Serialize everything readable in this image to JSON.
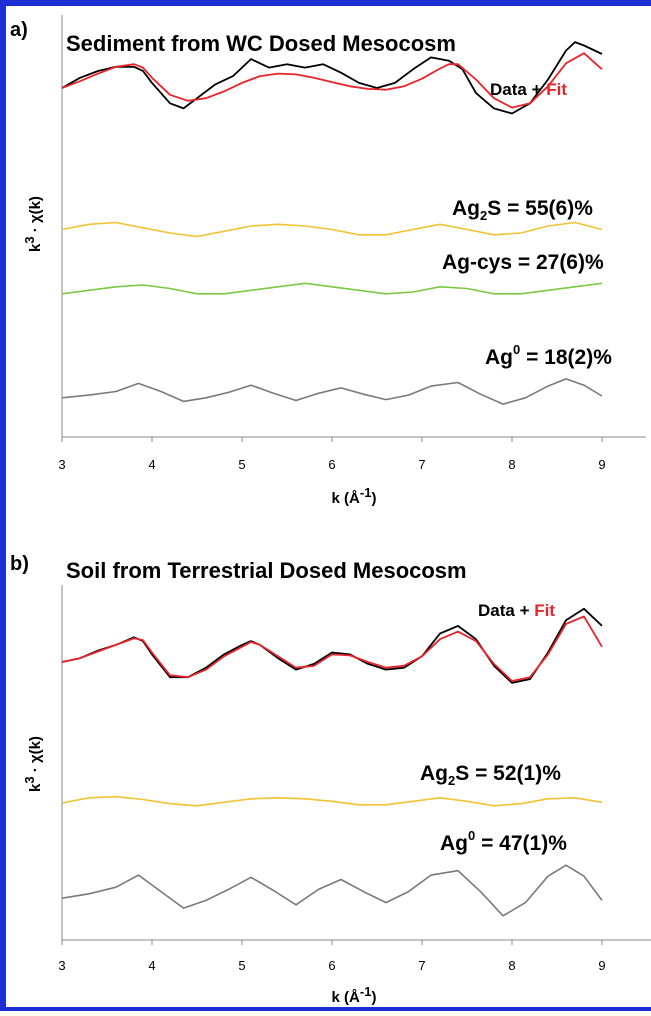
{
  "chart_data": [
    {
      "type": "line",
      "panel_label": "a)",
      "title": "Sediment from WC Dosed Mesocosm",
      "xlabel": "k (Å-1)",
      "ylabel": "k3 · χ(k)",
      "xlim": [
        3,
        9
      ],
      "x_ticks": [
        3,
        4,
        5,
        6,
        7,
        8,
        9
      ],
      "grid": false,
      "legend": {
        "parts": [
          "Data",
          " + ",
          "Fit"
        ],
        "colors": [
          "#000000",
          "#000000",
          "#e8232a"
        ],
        "placement": "top-right"
      },
      "series": [
        {
          "name": "Data",
          "color": "#000000",
          "x": [
            3.0,
            3.2,
            3.4,
            3.6,
            3.8,
            3.9,
            4.0,
            4.2,
            4.35,
            4.5,
            4.7,
            4.9,
            5.1,
            5.3,
            5.5,
            5.7,
            5.9,
            6.1,
            6.3,
            6.5,
            6.7,
            6.9,
            7.1,
            7.3,
            7.45,
            7.6,
            7.8,
            8.0,
            8.2,
            8.4,
            8.6,
            8.7,
            8.8,
            9.0
          ],
          "y": [
            3.2,
            3.8,
            4.2,
            4.45,
            4.45,
            4.2,
            3.5,
            2.3,
            2.0,
            2.6,
            3.4,
            3.9,
            4.9,
            4.4,
            4.6,
            4.4,
            4.6,
            4.1,
            3.5,
            3.2,
            3.5,
            4.3,
            5.0,
            4.8,
            4.3,
            2.9,
            2.0,
            1.7,
            2.3,
            3.7,
            5.4,
            5.9,
            5.7,
            5.2
          ]
        },
        {
          "name": "Fit",
          "color": "#e8232a",
          "x": [
            3.0,
            3.2,
            3.4,
            3.6,
            3.8,
            3.9,
            4.0,
            4.2,
            4.4,
            4.6,
            4.8,
            5.0,
            5.2,
            5.4,
            5.6,
            5.8,
            6.0,
            6.2,
            6.4,
            6.6,
            6.8,
            7.0,
            7.2,
            7.3,
            7.4,
            7.6,
            7.8,
            8.0,
            8.2,
            8.4,
            8.6,
            8.8,
            9.0
          ],
          "y": [
            3.2,
            3.6,
            4.05,
            4.45,
            4.6,
            4.4,
            3.8,
            2.8,
            2.45,
            2.6,
            3.0,
            3.5,
            3.9,
            4.05,
            4.0,
            3.8,
            3.55,
            3.3,
            3.15,
            3.1,
            3.3,
            3.75,
            4.35,
            4.6,
            4.6,
            3.7,
            2.6,
            2.05,
            2.3,
            3.3,
            4.65,
            5.25,
            4.3
          ]
        },
        {
          "name": "Ag2S",
          "color": "#f1c232",
          "x": [
            3.0,
            3.3,
            3.6,
            3.9,
            4.2,
            4.5,
            4.8,
            5.1,
            5.4,
            5.7,
            6.0,
            6.3,
            6.6,
            6.9,
            7.2,
            7.5,
            7.8,
            8.1,
            8.4,
            8.7,
            9.0
          ],
          "y": [
            0.1,
            0.25,
            0.3,
            0.15,
            0.0,
            -0.1,
            0.05,
            0.2,
            0.25,
            0.2,
            0.1,
            -0.05,
            -0.05,
            0.1,
            0.25,
            0.1,
            -0.05,
            0.0,
            0.2,
            0.3,
            0.1
          ]
        },
        {
          "name": "Ag-cys",
          "color": "#7ac943",
          "x": [
            3.0,
            3.3,
            3.6,
            3.9,
            4.2,
            4.5,
            4.8,
            5.1,
            5.4,
            5.7,
            6.0,
            6.3,
            6.6,
            6.9,
            7.2,
            7.5,
            7.8,
            8.1,
            8.4,
            8.7,
            9.0
          ],
          "y": [
            -0.05,
            0.05,
            0.15,
            0.2,
            0.1,
            -0.05,
            -0.05,
            0.05,
            0.15,
            0.25,
            0.15,
            0.05,
            -0.05,
            0.0,
            0.15,
            0.1,
            -0.05,
            -0.05,
            0.05,
            0.15,
            0.25
          ]
        },
        {
          "name": "Ag0",
          "color": "#7a7a7a",
          "x": [
            3.0,
            3.3,
            3.6,
            3.85,
            4.1,
            4.35,
            4.6,
            4.85,
            5.1,
            5.35,
            5.6,
            5.85,
            6.1,
            6.35,
            6.6,
            6.85,
            7.1,
            7.4,
            7.65,
            7.9,
            8.15,
            8.4,
            8.6,
            8.8,
            9.0
          ],
          "y": [
            -0.1,
            0.05,
            0.25,
            0.7,
            0.25,
            -0.3,
            -0.1,
            0.2,
            0.6,
            0.15,
            -0.25,
            0.15,
            0.45,
            0.1,
            -0.2,
            0.05,
            0.55,
            0.75,
            0.1,
            -0.45,
            -0.1,
            0.55,
            0.95,
            0.6,
            0.0
          ]
        }
      ],
      "annotations": {
        "ag2s": {
          "pre": "Ag",
          "sub": "2",
          "post": "S = 55(6)%"
        },
        "agcys": {
          "text": "Ag-cys = 27(6)%"
        },
        "ag0": {
          "pre": "Ag",
          "sup": "0",
          "post": " = 18(2)%"
        }
      }
    },
    {
      "type": "line",
      "panel_label": "b)",
      "title": "Soil from Terrestrial Dosed Mesocosm",
      "xlabel": "k (Å-1)",
      "ylabel": "k3 · χ(k)",
      "xlim": [
        3,
        9
      ],
      "x_ticks": [
        3,
        4,
        5,
        6,
        7,
        8,
        9
      ],
      "grid": false,
      "legend": {
        "parts": [
          "Data",
          " + ",
          "Fit"
        ],
        "colors": [
          "#000000",
          "#000000",
          "#e8232a"
        ],
        "placement": "top-right"
      },
      "series": [
        {
          "name": "Data",
          "color": "#000000",
          "x": [
            3.0,
            3.2,
            3.4,
            3.6,
            3.8,
            3.9,
            4.0,
            4.2,
            4.4,
            4.6,
            4.8,
            5.0,
            5.1,
            5.2,
            5.4,
            5.6,
            5.8,
            6.0,
            6.2,
            6.4,
            6.6,
            6.8,
            7.0,
            7.2,
            7.4,
            7.6,
            7.8,
            8.0,
            8.2,
            8.4,
            8.6,
            8.8,
            9.0
          ],
          "y": [
            3.0,
            3.2,
            3.6,
            3.9,
            4.3,
            4.1,
            3.4,
            2.2,
            2.2,
            2.7,
            3.4,
            3.9,
            4.1,
            3.9,
            3.2,
            2.6,
            2.9,
            3.5,
            3.4,
            2.9,
            2.6,
            2.7,
            3.3,
            4.5,
            4.9,
            4.2,
            2.8,
            1.9,
            2.1,
            3.5,
            5.2,
            5.8,
            4.9
          ]
        },
        {
          "name": "Fit",
          "color": "#e8232a",
          "x": [
            3.0,
            3.2,
            3.4,
            3.6,
            3.8,
            3.9,
            4.0,
            4.2,
            4.4,
            4.6,
            4.8,
            5.0,
            5.1,
            5.2,
            5.4,
            5.6,
            5.8,
            6.0,
            6.2,
            6.4,
            6.6,
            6.8,
            7.0,
            7.2,
            7.4,
            7.6,
            7.8,
            8.0,
            8.2,
            8.4,
            8.6,
            8.8,
            9.0
          ],
          "y": [
            3.0,
            3.2,
            3.55,
            3.9,
            4.25,
            4.15,
            3.5,
            2.3,
            2.2,
            2.6,
            3.3,
            3.8,
            4.05,
            3.9,
            3.3,
            2.7,
            2.8,
            3.4,
            3.35,
            3.0,
            2.7,
            2.8,
            3.3,
            4.2,
            4.6,
            4.1,
            2.9,
            2.0,
            2.2,
            3.4,
            5.0,
            5.4,
            3.8
          ]
        },
        {
          "name": "Ag2S",
          "color": "#f1c232",
          "x": [
            3.0,
            3.3,
            3.6,
            3.9,
            4.2,
            4.5,
            4.8,
            5.1,
            5.4,
            5.7,
            6.0,
            6.3,
            6.6,
            6.9,
            7.2,
            7.5,
            7.8,
            8.1,
            8.4,
            8.7,
            9.0
          ],
          "y": [
            0.0,
            0.15,
            0.18,
            0.1,
            -0.02,
            -0.08,
            0.02,
            0.12,
            0.15,
            0.12,
            0.05,
            -0.05,
            -0.05,
            0.05,
            0.15,
            0.05,
            -0.08,
            -0.02,
            0.12,
            0.15,
            0.02
          ]
        },
        {
          "name": "Ag0",
          "color": "#7a7a7a",
          "x": [
            3.0,
            3.3,
            3.6,
            3.85,
            4.1,
            4.35,
            4.6,
            4.85,
            5.1,
            5.35,
            5.6,
            5.85,
            6.1,
            6.35,
            6.6,
            6.85,
            7.1,
            7.4,
            7.65,
            7.9,
            8.15,
            8.4,
            8.6,
            8.8,
            9.0
          ],
          "y": [
            -0.1,
            0.1,
            0.4,
            0.95,
            0.2,
            -0.55,
            -0.2,
            0.3,
            0.85,
            0.25,
            -0.4,
            0.3,
            0.75,
            0.2,
            -0.3,
            0.2,
            0.95,
            1.15,
            0.2,
            -0.9,
            -0.3,
            0.9,
            1.4,
            0.9,
            -0.2
          ]
        }
      ],
      "annotations": {
        "ag2s": {
          "pre": "Ag",
          "sub": "2",
          "post": "S = 52(1)%"
        },
        "ag0": {
          "pre": "Ag",
          "sup": "0",
          "post": " = 47(1)%"
        }
      }
    }
  ]
}
